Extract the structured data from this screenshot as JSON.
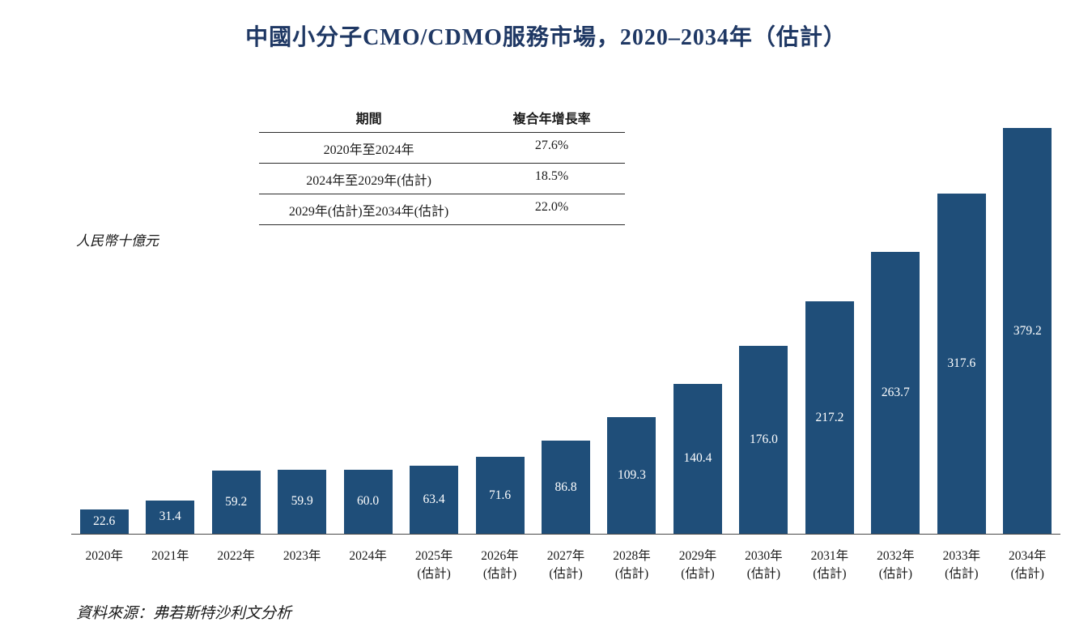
{
  "title": "中國小分子CMO/CDMO服務市場，2020–2034年（估計）",
  "unit_label": "人民幣十億元",
  "source": "資料來源：弗若斯特沙利文分析",
  "colors": {
    "title": "#1f3864",
    "text": "#1a1a1a",
    "axis": "#4a4a4a",
    "bar": "#1f4e79"
  },
  "cagr_table": {
    "headers": [
      "期間",
      "複合年增長率"
    ],
    "rows": [
      [
        "2020年至2024年",
        "27.6%"
      ],
      [
        "2024年至2029年(估計)",
        "18.5%"
      ],
      [
        "2029年(估計)至2034年(估計)",
        "22.0%"
      ]
    ]
  },
  "chart_data": {
    "type": "bar",
    "title": "中國小分子CMO/CDMO服務市場，2020–2034年（估計）",
    "ylabel": "人民幣十億元",
    "categories": [
      [
        "2020年"
      ],
      [
        "2021年"
      ],
      [
        "2022年"
      ],
      [
        "2023年"
      ],
      [
        "2024年"
      ],
      [
        "2025年",
        "(估計)"
      ],
      [
        "2026年",
        "(估計)"
      ],
      [
        "2027年",
        "(估計)"
      ],
      [
        "2028年",
        "(估計)"
      ],
      [
        "2029年",
        "(估計)"
      ],
      [
        "2030年",
        "(估計)"
      ],
      [
        "2031年",
        "(估計)"
      ],
      [
        "2032年",
        "(估計)"
      ],
      [
        "2033年",
        "(估計)"
      ],
      [
        "2034年",
        "(估計)"
      ]
    ],
    "values": [
      22.6,
      31.4,
      59.2,
      59.9,
      60.0,
      63.4,
      71.6,
      86.8,
      109.3,
      140.4,
      176.0,
      217.2,
      263.7,
      317.6,
      379.2
    ],
    "value_labels": [
      "22.6",
      "31.4",
      "59.2",
      "59.9",
      "60.0",
      "63.4",
      "71.6",
      "86.8",
      "109.3",
      "140.4",
      "176.0",
      "217.2",
      "263.7",
      "317.6",
      "379.2"
    ],
    "ylim": [
      0,
      380
    ],
    "grid": false,
    "legend": "none",
    "bar_color": "#1f4e79",
    "value_label_color": "#ffffff"
  }
}
